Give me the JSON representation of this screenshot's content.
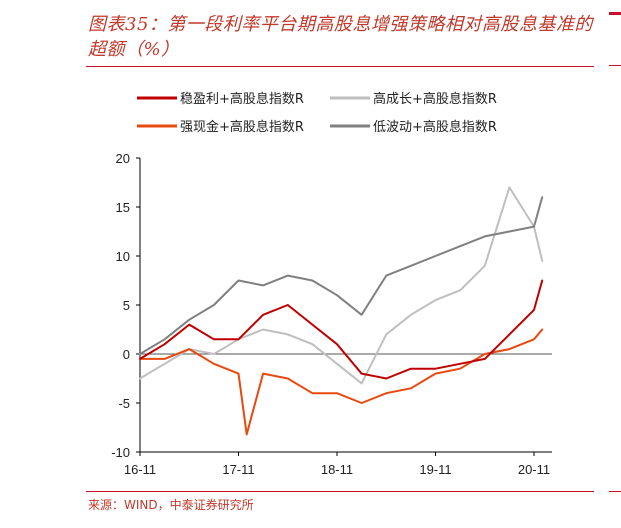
{
  "figure": {
    "title": "图表35：第一段利率平台期高股息增强策略相对高股息基准的超额（%）",
    "source": "来源：WIND，中泰证券研究所"
  },
  "chart_data": {
    "type": "line",
    "title": "第一段利率平台期高股息增强策略相对高股息基准的超额（%）",
    "xlabel": "",
    "ylabel": "",
    "ylim": [
      -10,
      20
    ],
    "yticks": [
      "20",
      "15",
      "10",
      "5",
      "0",
      "-5",
      "-10"
    ],
    "xticks": [
      "16-11",
      "17-11",
      "18-11",
      "19-11",
      "20-11"
    ],
    "grid": false,
    "zero_line": true,
    "legend_position": "top",
    "series": [
      {
        "name": "稳盈利+高股息指数R",
        "color": "#c00000",
        "x": [
          "16-11",
          "17-02",
          "17-05",
          "17-08",
          "17-11",
          "18-02",
          "18-05",
          "18-08",
          "18-11",
          "19-02",
          "19-05",
          "19-08",
          "19-11",
          "20-02",
          "20-05",
          "20-08",
          "20-11",
          "20-12"
        ],
        "values": [
          -0.5,
          1.0,
          3.0,
          1.5,
          1.5,
          4.0,
          5.0,
          3.0,
          1.0,
          -2.0,
          -2.5,
          -1.5,
          -1.5,
          -1.0,
          -0.5,
          2.0,
          4.5,
          7.5
        ]
      },
      {
        "name": "高成长+高股息指数R",
        "color": "#bfbfbf",
        "x": [
          "16-11",
          "17-02",
          "17-05",
          "17-08",
          "17-11",
          "18-02",
          "18-05",
          "18-08",
          "18-11",
          "19-02",
          "19-05",
          "19-08",
          "19-11",
          "20-02",
          "20-05",
          "20-08",
          "20-11",
          "20-12"
        ],
        "values": [
          -2.5,
          -1.0,
          0.5,
          0.0,
          1.5,
          2.5,
          2.0,
          1.0,
          -1.0,
          -3.0,
          2.0,
          4.0,
          5.5,
          6.5,
          9.0,
          17.0,
          13.0,
          9.5
        ]
      },
      {
        "name": "强现金+高股息指数R",
        "color": "#e8490f",
        "x": [
          "16-11",
          "17-02",
          "17-05",
          "17-08",
          "17-11",
          "17-12",
          "18-02",
          "18-05",
          "18-08",
          "18-11",
          "19-02",
          "19-05",
          "19-08",
          "19-11",
          "20-02",
          "20-05",
          "20-08",
          "20-11",
          "20-12"
        ],
        "values": [
          -0.5,
          -0.5,
          0.5,
          -1.0,
          -2.0,
          -8.2,
          -2.0,
          -2.5,
          -4.0,
          -4.0,
          -5.0,
          -4.0,
          -3.5,
          -2.0,
          -1.5,
          0.0,
          0.5,
          1.5,
          2.5
        ]
      },
      {
        "name": "低波动+高股息指数R",
        "color": "#808080",
        "x": [
          "16-11",
          "17-02",
          "17-05",
          "17-08",
          "17-11",
          "18-02",
          "18-05",
          "18-08",
          "18-11",
          "19-02",
          "19-05",
          "19-08",
          "19-11",
          "20-02",
          "20-05",
          "20-08",
          "20-11",
          "20-12"
        ],
        "values": [
          0.0,
          1.5,
          3.5,
          5.0,
          7.5,
          7.0,
          8.0,
          7.5,
          6.0,
          4.0,
          8.0,
          9.0,
          10.0,
          11.0,
          12.0,
          12.5,
          13.0,
          16.0
        ]
      }
    ]
  }
}
